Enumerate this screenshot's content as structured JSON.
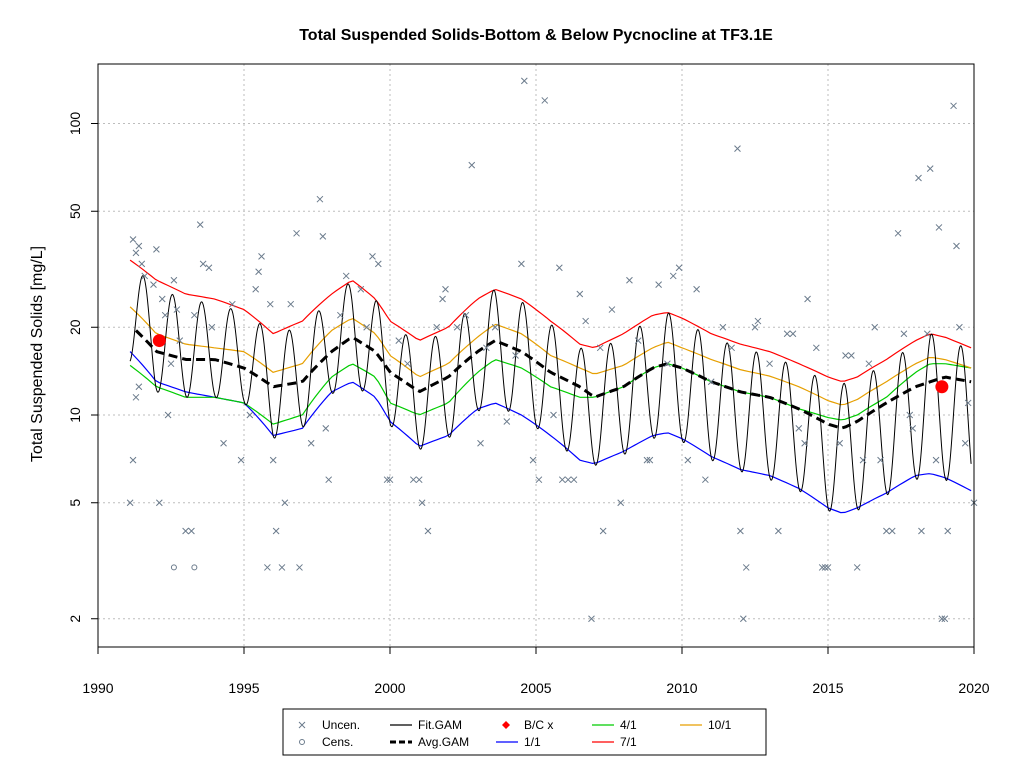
{
  "chart_data": {
    "type": "line",
    "title": "Total Suspended Solids-Bottom & Below Pycnocline at TF3.1E",
    "xlabel": "",
    "ylabel": "Total Suspended Solids [mg/L]",
    "xlim": [
      1990,
      2020
    ],
    "ylim": [
      1.6,
      160
    ],
    "y_scale": "log",
    "x_ticks": [
      1990,
      1995,
      2000,
      2005,
      2010,
      2015,
      2020
    ],
    "y_ticks": [
      2,
      5,
      10,
      20,
      50,
      100
    ],
    "grid": true,
    "legend_position": "bottom",
    "legend": [
      {
        "label": "Uncen.",
        "marker": "x",
        "color": "#6b7b8c"
      },
      {
        "label": "Cens.",
        "marker": "o",
        "color": "#6b7b8c"
      },
      {
        "label": "Fit.GAM",
        "line": "solid",
        "color": "#000000"
      },
      {
        "label": "Avg.GAM",
        "line": "dashed",
        "color": "#000000"
      },
      {
        "label": "B/C x",
        "marker": "diamond",
        "color": "#ff0000"
      },
      {
        "label": "1/1",
        "line": "solid",
        "color": "#0000ff"
      },
      {
        "label": "4/1",
        "line": "solid",
        "color": "#00cc00"
      },
      {
        "label": "7/1",
        "line": "solid",
        "color": "#ff0000"
      },
      {
        "label": "10/1",
        "line": "solid",
        "color": "#e69f00"
      }
    ],
    "series": [
      {
        "name": "Avg.GAM",
        "color": "#000000",
        "style": "dashed",
        "x": [
          1991.3,
          1992,
          1993,
          1994,
          1995,
          1996,
          1997,
          1998,
          1998.7,
          1999.5,
          2000,
          2001,
          2002,
          2003,
          2003.6,
          2004.5,
          2005.5,
          2006.5,
          2007,
          2008,
          2009,
          2009.5,
          2010,
          2011,
          2012,
          2013,
          2014,
          2015,
          2015.5,
          2016,
          2017,
          2018,
          2018.5,
          2019,
          2019.9
        ],
        "y": [
          19.5,
          16.5,
          15.5,
          15.5,
          14.5,
          12.5,
          13,
          16.5,
          18.5,
          16.5,
          14,
          12,
          13.5,
          16.5,
          18,
          16.5,
          14,
          12.5,
          11.5,
          12.5,
          14.5,
          15,
          14.5,
          13,
          12,
          11.5,
          10.5,
          9.3,
          9,
          9.5,
          11,
          12.5,
          13,
          13.5,
          13
        ]
      },
      {
        "name": "1/1",
        "color": "#0000ff",
        "style": "solid",
        "x": [
          1991.1,
          1992,
          1993,
          1994,
          1995,
          1996,
          1997,
          1998,
          1998.7,
          1999.5,
          2000,
          2001,
          2002,
          2003,
          2003.6,
          2004.5,
          2005.5,
          2006.5,
          2007,
          2008,
          2009,
          2009.5,
          2010,
          2011,
          2012,
          2013,
          2014,
          2015,
          2015.5,
          2016,
          2017,
          2018,
          2018.5,
          2019,
          2019.9
        ],
        "y": [
          16.5,
          13,
          12,
          11.5,
          11,
          8.5,
          9,
          12,
          13,
          11.5,
          9.5,
          7.8,
          8.5,
          10.5,
          11,
          10,
          8.5,
          7,
          6.8,
          7.5,
          8.5,
          8.7,
          8.3,
          7.2,
          6.5,
          6.2,
          5.6,
          4.8,
          4.6,
          4.8,
          5.4,
          6.2,
          6.3,
          6.1,
          5.5
        ]
      },
      {
        "name": "4/1",
        "color": "#00cc00",
        "style": "solid",
        "x": [
          1991.1,
          1992,
          1993,
          1994,
          1995,
          1996,
          1997,
          1998,
          1998.7,
          1999.5,
          2000,
          2001,
          2002,
          2003,
          2003.6,
          2004.5,
          2005.5,
          2006.5,
          2007,
          2008,
          2009,
          2009.5,
          2010,
          2011,
          2012,
          2013,
          2014,
          2015,
          2015.5,
          2016,
          2017,
          2018,
          2018.5,
          2019,
          2019.9
        ],
        "y": [
          14.8,
          12.5,
          11.5,
          11.5,
          11,
          9.3,
          10,
          13.5,
          15,
          13.5,
          11,
          10,
          11,
          14,
          15.5,
          14.5,
          12.5,
          11.5,
          11.5,
          12.5,
          14.5,
          15,
          14.5,
          13,
          12,
          11.5,
          10.5,
          9.8,
          9.6,
          10,
          11.5,
          14,
          15,
          15,
          14.5
        ]
      },
      {
        "name": "7/1",
        "color": "#ff0000",
        "style": "solid",
        "x": [
          1991.1,
          1992,
          1993,
          1994,
          1995,
          1996,
          1997,
          1998,
          1998.7,
          1999.5,
          2000,
          2001,
          2002,
          2003,
          2003.6,
          2004.5,
          2005.5,
          2006.5,
          2007,
          2008,
          2009,
          2009.5,
          2010,
          2011,
          2012,
          2013,
          2014,
          2015,
          2015.5,
          2016,
          2017,
          2018,
          2018.5,
          2019,
          2019.9
        ],
        "y": [
          34,
          29,
          26,
          25,
          23,
          19,
          21,
          26,
          29,
          25,
          21,
          18,
          20,
          25,
          27,
          25,
          21,
          17.5,
          17,
          19,
          22,
          22.5,
          21.5,
          19,
          17.5,
          16.5,
          15,
          13.5,
          13,
          13.5,
          15.5,
          18,
          19,
          18.5,
          17
        ]
      },
      {
        "name": "10/1",
        "color": "#e69f00",
        "style": "solid",
        "x": [
          1991.1,
          1992,
          1993,
          1994,
          1995,
          1996,
          1997,
          1998,
          1998.7,
          1999.5,
          2000,
          2001,
          2002,
          2003,
          2003.6,
          2004.5,
          2005.5,
          2006.5,
          2007,
          2008,
          2009,
          2009.5,
          2010,
          2011,
          2012,
          2013,
          2014,
          2015,
          2015.5,
          2016,
          2017,
          2018,
          2018.5,
          2019,
          2019.9
        ],
        "y": [
          23.5,
          19,
          17.5,
          17,
          16.5,
          14,
          15,
          19.5,
          21.5,
          19,
          16,
          13.5,
          15,
          18.5,
          20.5,
          19,
          16,
          14.5,
          13.8,
          14.8,
          17,
          17.8,
          17,
          15.5,
          14.3,
          13.6,
          12.5,
          11.2,
          10.8,
          11.3,
          13,
          15,
          15.8,
          15.5,
          14.5
        ]
      }
    ],
    "fit_gam": {
      "name": "Fit.GAM",
      "color": "#000000",
      "envelope_upper": {
        "x": [
          1991.1,
          1992,
          1993,
          1994,
          1995,
          1996,
          1997,
          1998,
          1998.7,
          1999.5,
          2000,
          2001,
          2002,
          2003,
          2003.6,
          2004.5,
          2005.5,
          2006.5,
          2007,
          2008,
          2009,
          2009.5,
          2010,
          2011,
          2012,
          2013,
          2014,
          2015,
          2015.5,
          2016,
          2017,
          2018,
          2018.5,
          2019,
          2019.9
        ],
        "y": [
          33,
          27,
          25,
          24,
          22.5,
          19,
          20,
          25,
          29,
          25,
          20.5,
          17.5,
          19.5,
          24.5,
          27,
          24.5,
          20.5,
          17,
          16.5,
          18.5,
          21.5,
          22.5,
          21,
          18.5,
          17,
          16,
          14.5,
          13,
          12.8,
          13.2,
          15,
          17.5,
          19,
          18.5,
          16.5
        ]
      },
      "envelope_lower": {
        "x": [
          1991.1,
          1992,
          1993,
          1994,
          1995,
          1996,
          1997,
          1998,
          1998.7,
          1999.5,
          2000,
          2001,
          2002,
          2003,
          2003.6,
          2004.5,
          2005.5,
          2006.5,
          2007,
          2008,
          2009,
          2009.5,
          2010,
          2011,
          2012,
          2013,
          2014,
          2015,
          2015.5,
          2016,
          2017,
          2018,
          2018.5,
          2019,
          2019.9
        ],
        "y": [
          15,
          12,
          11.5,
          11.5,
          11,
          8.3,
          9,
          11.8,
          12.8,
          11.2,
          9.2,
          7.6,
          8.3,
          10.3,
          10.8,
          9.8,
          8.3,
          6.9,
          6.7,
          7.3,
          8.3,
          8.5,
          8.1,
          7,
          6.4,
          6,
          5.5,
          4.7,
          4.5,
          4.7,
          5.3,
          6,
          6.2,
          6,
          5.4
        ]
      },
      "cycles_per_year": 1,
      "peak_phase_year_fraction": 0.55
    },
    "bc_points": [
      {
        "x": 1992.1,
        "y": 18
      },
      {
        "x": 2018.9,
        "y": 12.5
      }
    ],
    "uncensored_points": [
      {
        "x": 1991.2,
        "y": 40
      },
      {
        "x": 1991.3,
        "y": 36
      },
      {
        "x": 1991.4,
        "y": 38
      },
      {
        "x": 1991.5,
        "y": 33
      },
      {
        "x": 1991.6,
        "y": 30
      },
      {
        "x": 1991.3,
        "y": 11.5
      },
      {
        "x": 1991.4,
        "y": 12.5
      },
      {
        "x": 1991.2,
        "y": 7
      },
      {
        "x": 1991.1,
        "y": 5
      },
      {
        "x": 1991.9,
        "y": 28
      },
      {
        "x": 1992.0,
        "y": 37
      },
      {
        "x": 1992.2,
        "y": 25
      },
      {
        "x": 1992.3,
        "y": 22
      },
      {
        "x": 1992.1,
        "y": 5
      },
      {
        "x": 1992.4,
        "y": 10
      },
      {
        "x": 1992.6,
        "y": 29
      },
      {
        "x": 1992.7,
        "y": 23
      },
      {
        "x": 1992.8,
        "y": 18
      },
      {
        "x": 1992.5,
        "y": 15
      },
      {
        "x": 1993.0,
        "y": 4
      },
      {
        "x": 1993.2,
        "y": 4
      },
      {
        "x": 1993.3,
        "y": 22
      },
      {
        "x": 1993.5,
        "y": 45
      },
      {
        "x": 1993.6,
        "y": 33
      },
      {
        "x": 1993.8,
        "y": 32
      },
      {
        "x": 1993.9,
        "y": 20
      },
      {
        "x": 1994.3,
        "y": 8
      },
      {
        "x": 1994.6,
        "y": 24
      },
      {
        "x": 1994.9,
        "y": 7
      },
      {
        "x": 1995.2,
        "y": 10
      },
      {
        "x": 1995.4,
        "y": 27
      },
      {
        "x": 1995.5,
        "y": 31
      },
      {
        "x": 1995.6,
        "y": 35
      },
      {
        "x": 1995.8,
        "y": 3
      },
      {
        "x": 1995.9,
        "y": 24
      },
      {
        "x": 1996.0,
        "y": 7
      },
      {
        "x": 1996.1,
        "y": 4
      },
      {
        "x": 1996.3,
        "y": 3
      },
      {
        "x": 1996.4,
        "y": 5
      },
      {
        "x": 1996.6,
        "y": 24
      },
      {
        "x": 1996.8,
        "y": 42
      },
      {
        "x": 1996.9,
        "y": 3
      },
      {
        "x": 1997.3,
        "y": 8
      },
      {
        "x": 1997.6,
        "y": 55
      },
      {
        "x": 1997.7,
        "y": 41
      },
      {
        "x": 1997.8,
        "y": 9
      },
      {
        "x": 1997.9,
        "y": 6
      },
      {
        "x": 1998.3,
        "y": 22
      },
      {
        "x": 1998.5,
        "y": 30
      },
      {
        "x": 1999.0,
        "y": 27
      },
      {
        "x": 1999.2,
        "y": 20
      },
      {
        "x": 1999.4,
        "y": 35
      },
      {
        "x": 1999.6,
        "y": 33
      },
      {
        "x": 1999.9,
        "y": 6
      },
      {
        "x": 2000.0,
        "y": 6
      },
      {
        "x": 2000.3,
        "y": 18
      },
      {
        "x": 2000.6,
        "y": 15
      },
      {
        "x": 2000.8,
        "y": 6
      },
      {
        "x": 2001.0,
        "y": 6
      },
      {
        "x": 2001.1,
        "y": 5
      },
      {
        "x": 2001.3,
        "y": 4
      },
      {
        "x": 2001.6,
        "y": 20
      },
      {
        "x": 2001.8,
        "y": 25
      },
      {
        "x": 2001.9,
        "y": 27
      },
      {
        "x": 2002.3,
        "y": 20
      },
      {
        "x": 2002.6,
        "y": 22
      },
      {
        "x": 2002.8,
        "y": 72
      },
      {
        "x": 2003.1,
        "y": 8
      },
      {
        "x": 2003.3,
        "y": 17
      },
      {
        "x": 2003.6,
        "y": 20
      },
      {
        "x": 2004.0,
        "y": 9.5
      },
      {
        "x": 2004.3,
        "y": 16
      },
      {
        "x": 2004.5,
        "y": 33
      },
      {
        "x": 2004.6,
        "y": 140
      },
      {
        "x": 2004.9,
        "y": 7
      },
      {
        "x": 2005.1,
        "y": 6
      },
      {
        "x": 2005.3,
        "y": 120
      },
      {
        "x": 2005.6,
        "y": 10
      },
      {
        "x": 2005.8,
        "y": 32
      },
      {
        "x": 2005.9,
        "y": 6
      },
      {
        "x": 2006.1,
        "y": 6
      },
      {
        "x": 2006.3,
        "y": 6
      },
      {
        "x": 2006.5,
        "y": 26
      },
      {
        "x": 2006.7,
        "y": 21
      },
      {
        "x": 2006.9,
        "y": 2
      },
      {
        "x": 2007.2,
        "y": 17
      },
      {
        "x": 2007.3,
        "y": 4
      },
      {
        "x": 2007.6,
        "y": 23
      },
      {
        "x": 2007.9,
        "y": 5
      },
      {
        "x": 2008.2,
        "y": 29
      },
      {
        "x": 2008.5,
        "y": 18
      },
      {
        "x": 2008.8,
        "y": 7
      },
      {
        "x": 2008.9,
        "y": 7
      },
      {
        "x": 2009.2,
        "y": 28
      },
      {
        "x": 2009.5,
        "y": 15
      },
      {
        "x": 2009.7,
        "y": 30
      },
      {
        "x": 2009.9,
        "y": 32
      },
      {
        "x": 2010.2,
        "y": 7
      },
      {
        "x": 2010.5,
        "y": 27
      },
      {
        "x": 2010.8,
        "y": 6
      },
      {
        "x": 2011.0,
        "y": 13
      },
      {
        "x": 2011.4,
        "y": 20
      },
      {
        "x": 2011.7,
        "y": 17
      },
      {
        "x": 2011.9,
        "y": 82
      },
      {
        "x": 2012.0,
        "y": 4
      },
      {
        "x": 2012.1,
        "y": 2
      },
      {
        "x": 2012.2,
        "y": 3
      },
      {
        "x": 2012.5,
        "y": 20
      },
      {
        "x": 2012.6,
        "y": 21
      },
      {
        "x": 2013.0,
        "y": 15
      },
      {
        "x": 2013.3,
        "y": 4
      },
      {
        "x": 2013.6,
        "y": 19
      },
      {
        "x": 2013.8,
        "y": 19
      },
      {
        "x": 2014.0,
        "y": 9
      },
      {
        "x": 2014.2,
        "y": 8
      },
      {
        "x": 2014.3,
        "y": 25
      },
      {
        "x": 2014.6,
        "y": 17
      },
      {
        "x": 2014.8,
        "y": 3
      },
      {
        "x": 2014.9,
        "y": 3
      },
      {
        "x": 2015.0,
        "y": 3
      },
      {
        "x": 2015.4,
        "y": 8
      },
      {
        "x": 2015.6,
        "y": 16
      },
      {
        "x": 2015.8,
        "y": 16
      },
      {
        "x": 2016.0,
        "y": 3
      },
      {
        "x": 2016.2,
        "y": 7
      },
      {
        "x": 2016.4,
        "y": 15
      },
      {
        "x": 2016.6,
        "y": 20
      },
      {
        "x": 2016.8,
        "y": 7
      },
      {
        "x": 2017.0,
        "y": 4
      },
      {
        "x": 2017.2,
        "y": 4
      },
      {
        "x": 2017.4,
        "y": 42
      },
      {
        "x": 2017.6,
        "y": 19
      },
      {
        "x": 2017.8,
        "y": 10
      },
      {
        "x": 2017.9,
        "y": 9
      },
      {
        "x": 2018.1,
        "y": 65
      },
      {
        "x": 2018.2,
        "y": 4
      },
      {
        "x": 2018.4,
        "y": 19
      },
      {
        "x": 2018.5,
        "y": 70
      },
      {
        "x": 2018.7,
        "y": 7
      },
      {
        "x": 2018.8,
        "y": 44
      },
      {
        "x": 2018.9,
        "y": 2
      },
      {
        "x": 2019.0,
        "y": 2
      },
      {
        "x": 2019.1,
        "y": 4
      },
      {
        "x": 2019.3,
        "y": 115
      },
      {
        "x": 2019.4,
        "y": 38
      },
      {
        "x": 2019.5,
        "y": 20
      },
      {
        "x": 2019.7,
        "y": 8
      },
      {
        "x": 2019.8,
        "y": 11
      },
      {
        "x": 2020.0,
        "y": 5
      }
    ],
    "censored_points": [
      {
        "x": 1992.6,
        "y": 3
      },
      {
        "x": 1993.3,
        "y": 3
      }
    ]
  }
}
